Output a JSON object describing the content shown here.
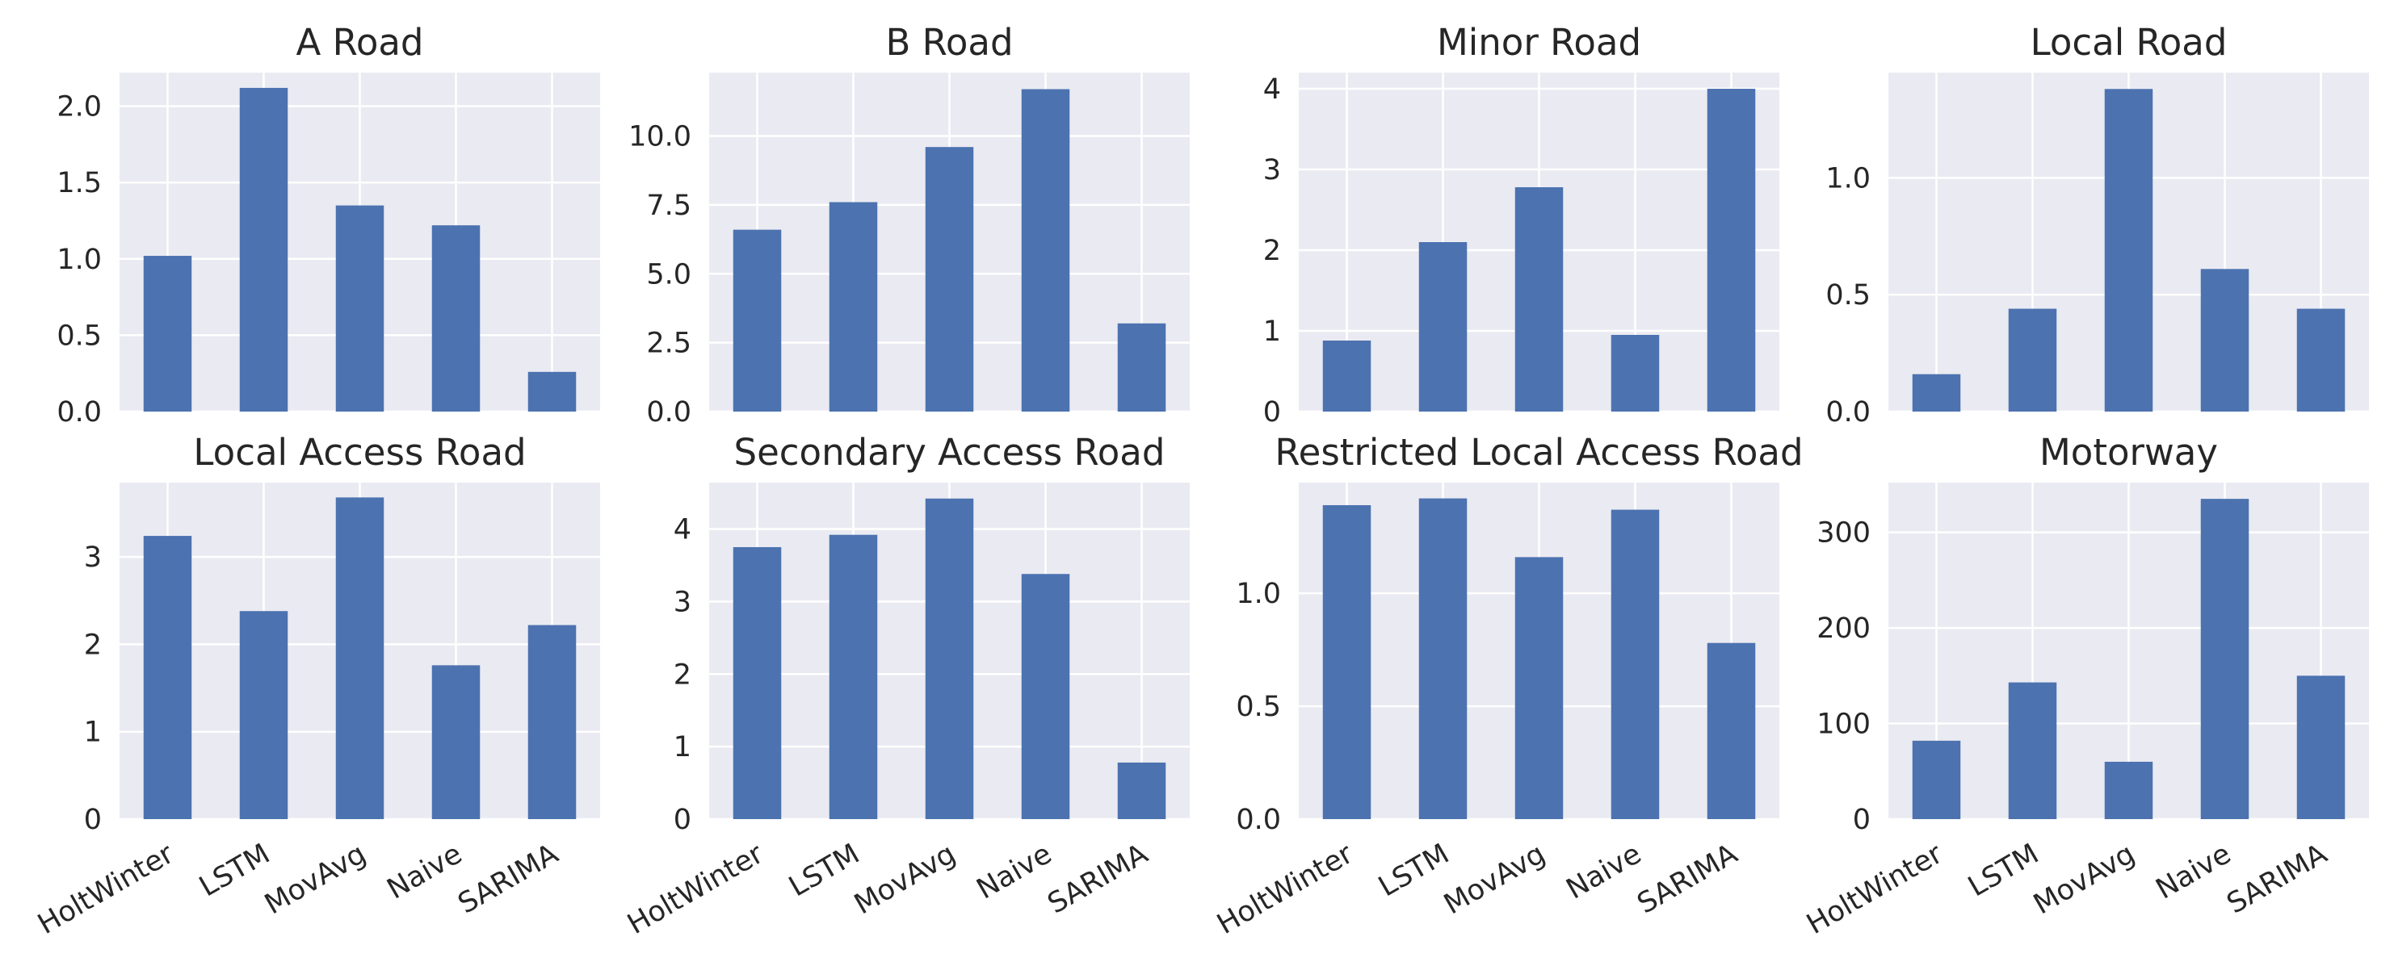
{
  "chart_data": {
    "type": "bar",
    "layout": "2x4 grid",
    "categories": [
      "HoltWinter",
      "LSTM",
      "MovAvg",
      "Naive",
      "SARIMA"
    ],
    "panels": [
      {
        "title": "A Road",
        "values": [
          1.02,
          2.12,
          1.35,
          1.22,
          0.26
        ],
        "ylim": [
          0,
          2.22
        ],
        "yticks": [
          0,
          0.5,
          1.0,
          1.5,
          2.0
        ],
        "ytick_labels": [
          "0.0",
          "0.5",
          "1.0",
          "1.5",
          "2.0"
        ]
      },
      {
        "title": "B Road",
        "values": [
          6.6,
          7.6,
          9.6,
          11.7,
          3.2
        ],
        "ylim": [
          0,
          12.3
        ],
        "yticks": [
          0,
          2.5,
          5.0,
          7.5,
          10.0
        ],
        "ytick_labels": [
          "0.0",
          "2.5",
          "5.0",
          "7.5",
          "10.0"
        ]
      },
      {
        "title": "Minor Road",
        "values": [
          0.88,
          2.1,
          2.78,
          0.95,
          4.0
        ],
        "ylim": [
          0,
          4.2
        ],
        "yticks": [
          0,
          1,
          2,
          3,
          4
        ],
        "ytick_labels": [
          "0",
          "1",
          "2",
          "3",
          "4"
        ]
      },
      {
        "title": "Local Road",
        "values": [
          0.16,
          0.44,
          1.38,
          0.61,
          0.44
        ],
        "ylim": [
          0,
          1.45
        ],
        "yticks": [
          0,
          0.5,
          1.0
        ],
        "ytick_labels": [
          "0.0",
          "0.5",
          "1.0"
        ]
      },
      {
        "title": "Local Access Road",
        "values": [
          3.24,
          2.38,
          3.68,
          1.76,
          2.22
        ],
        "ylim": [
          0,
          3.85
        ],
        "yticks": [
          0,
          1,
          2,
          3
        ],
        "ytick_labels": [
          "0",
          "1",
          "2",
          "3"
        ]
      },
      {
        "title": "Secondary Access Road",
        "values": [
          3.75,
          3.92,
          4.42,
          3.38,
          0.78
        ],
        "ylim": [
          0,
          4.64
        ],
        "yticks": [
          0,
          1,
          2,
          3,
          4
        ],
        "ytick_labels": [
          "0",
          "1",
          "2",
          "3",
          "4"
        ]
      },
      {
        "title": "Restricted Local Access Road",
        "values": [
          1.39,
          1.42,
          1.16,
          1.37,
          0.78
        ],
        "ylim": [
          0,
          1.49
        ],
        "yticks": [
          0,
          0.5,
          1.0
        ],
        "ytick_labels": [
          "0.0",
          "0.5",
          "1.0"
        ]
      },
      {
        "title": "Motorway",
        "values": [
          82,
          143,
          60,
          335,
          150
        ],
        "ylim": [
          0,
          352
        ],
        "yticks": [
          0,
          100,
          200,
          300
        ],
        "ytick_labels": [
          "0",
          "100",
          "200",
          "300"
        ]
      }
    ],
    "xlabel": "",
    "ylabel": "",
    "grid": true,
    "color": "#4c72b0",
    "background": "#eaeaf2"
  }
}
